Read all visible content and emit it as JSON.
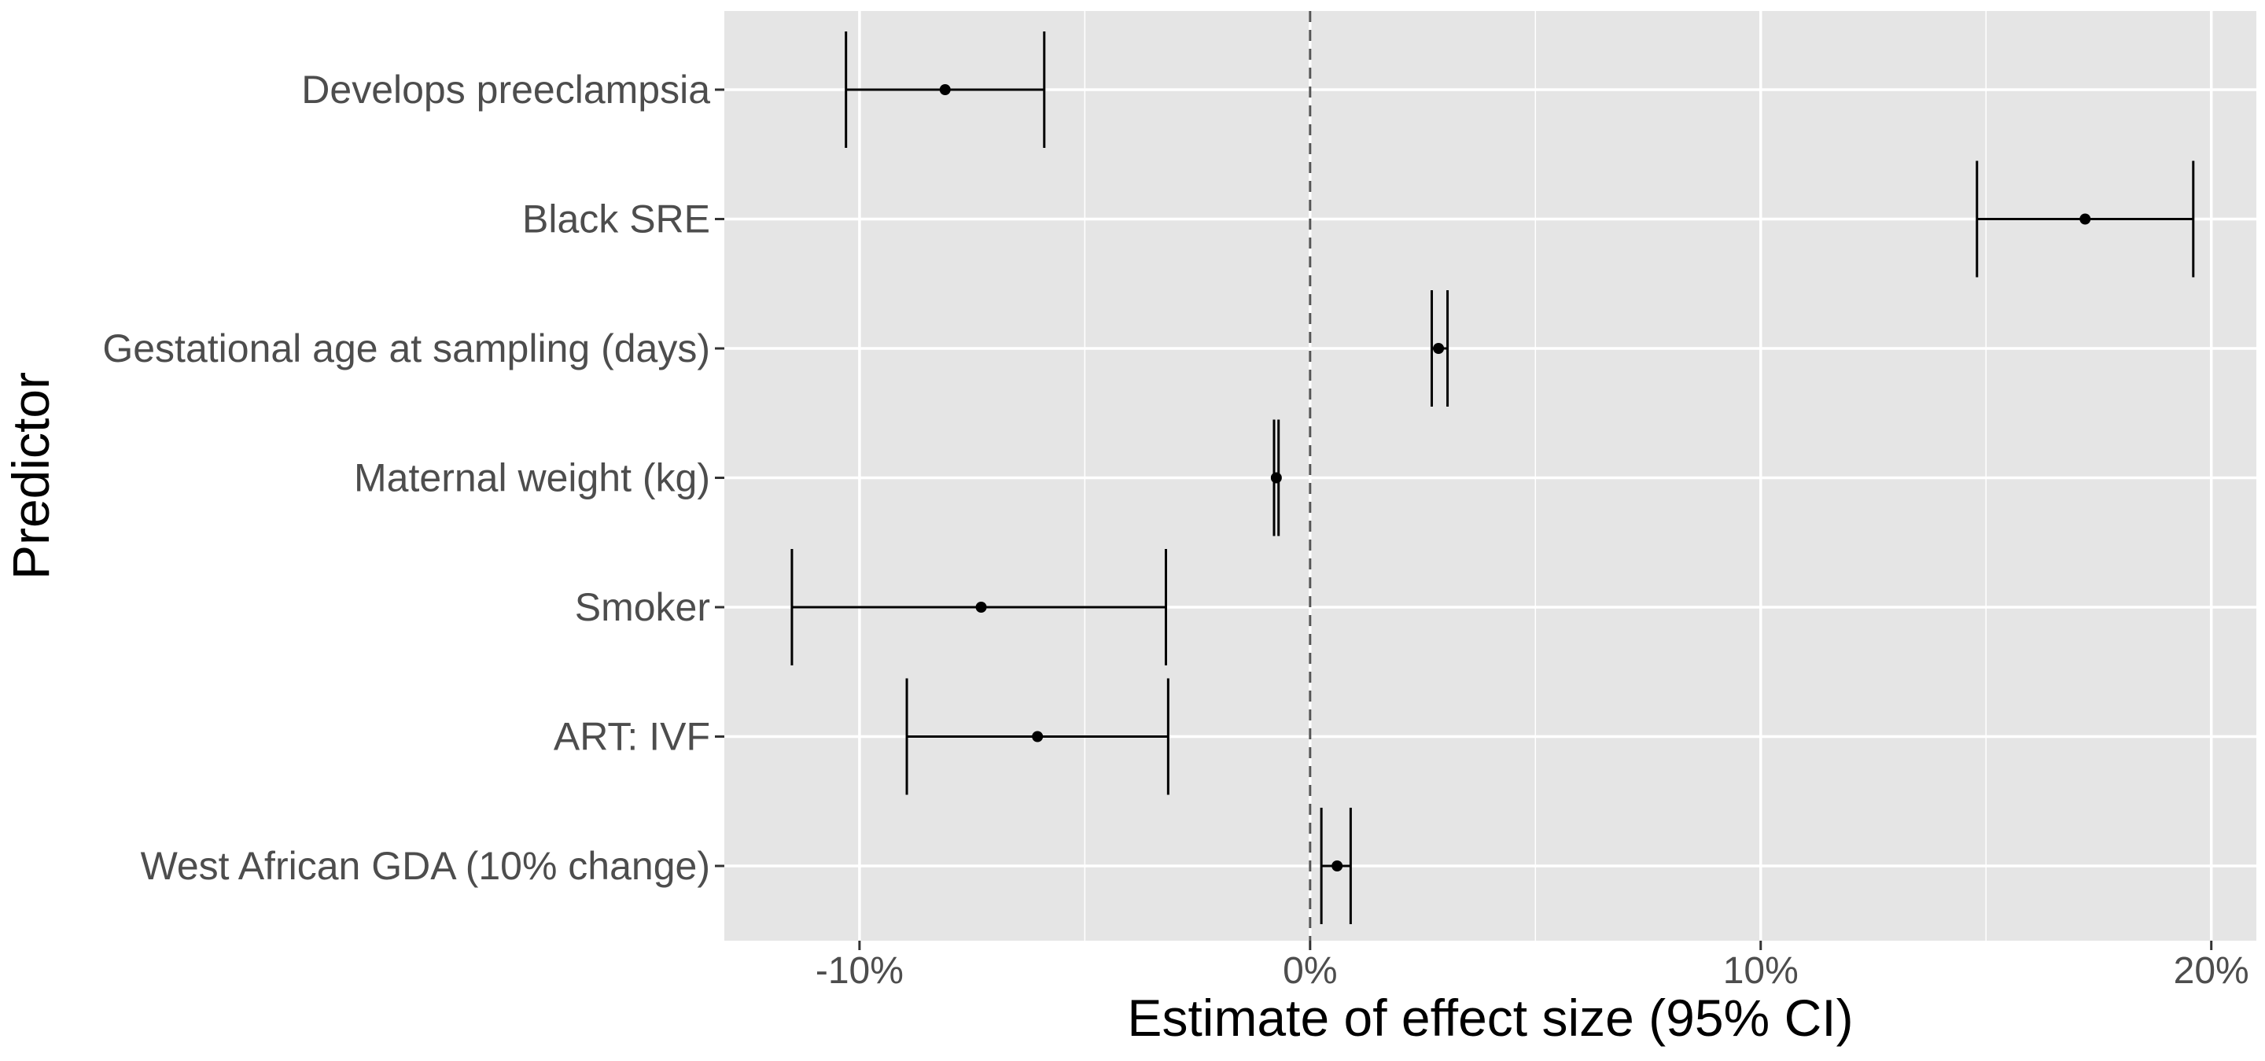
{
  "chart_data": {
    "type": "forest",
    "xlabel": "Estimate of effect size (95% CI)",
    "ylabel": "Predictor",
    "xlim": [
      -13,
      21
    ],
    "x_ticks": [
      {
        "value": -10,
        "label": "-10%"
      },
      {
        "value": 0,
        "label": "0%"
      },
      {
        "value": 10,
        "label": "10%"
      },
      {
        "value": 20,
        "label": "20%"
      }
    ],
    "x_minor_ticks": [
      -5,
      5,
      15
    ],
    "reference_line": 0,
    "grid": true,
    "panel_color": "#e5e5e5",
    "gridline_color": "#ffffff",
    "mark_color": "#000000",
    "predictors": [
      {
        "label": "Develops preeclampsia",
        "estimate": -8.1,
        "lower": -10.3,
        "upper": -5.9
      },
      {
        "label": "Black SRE",
        "estimate": 17.2,
        "lower": 14.8,
        "upper": 19.6
      },
      {
        "label": "Gestational age at sampling (days)",
        "estimate": 2.85,
        "lower": 2.7,
        "upper": 3.05
      },
      {
        "label": "Maternal weight (kg)",
        "estimate": -0.75,
        "lower": -0.8,
        "upper": -0.7
      },
      {
        "label": "Smoker",
        "estimate": -7.3,
        "lower": -11.5,
        "upper": -3.2
      },
      {
        "label": "ART: IVF",
        "estimate": -6.05,
        "lower": -8.95,
        "upper": -3.15
      },
      {
        "label": "West African GDA (10% change)",
        "estimate": 0.6,
        "lower": 0.25,
        "upper": 0.9
      }
    ]
  }
}
